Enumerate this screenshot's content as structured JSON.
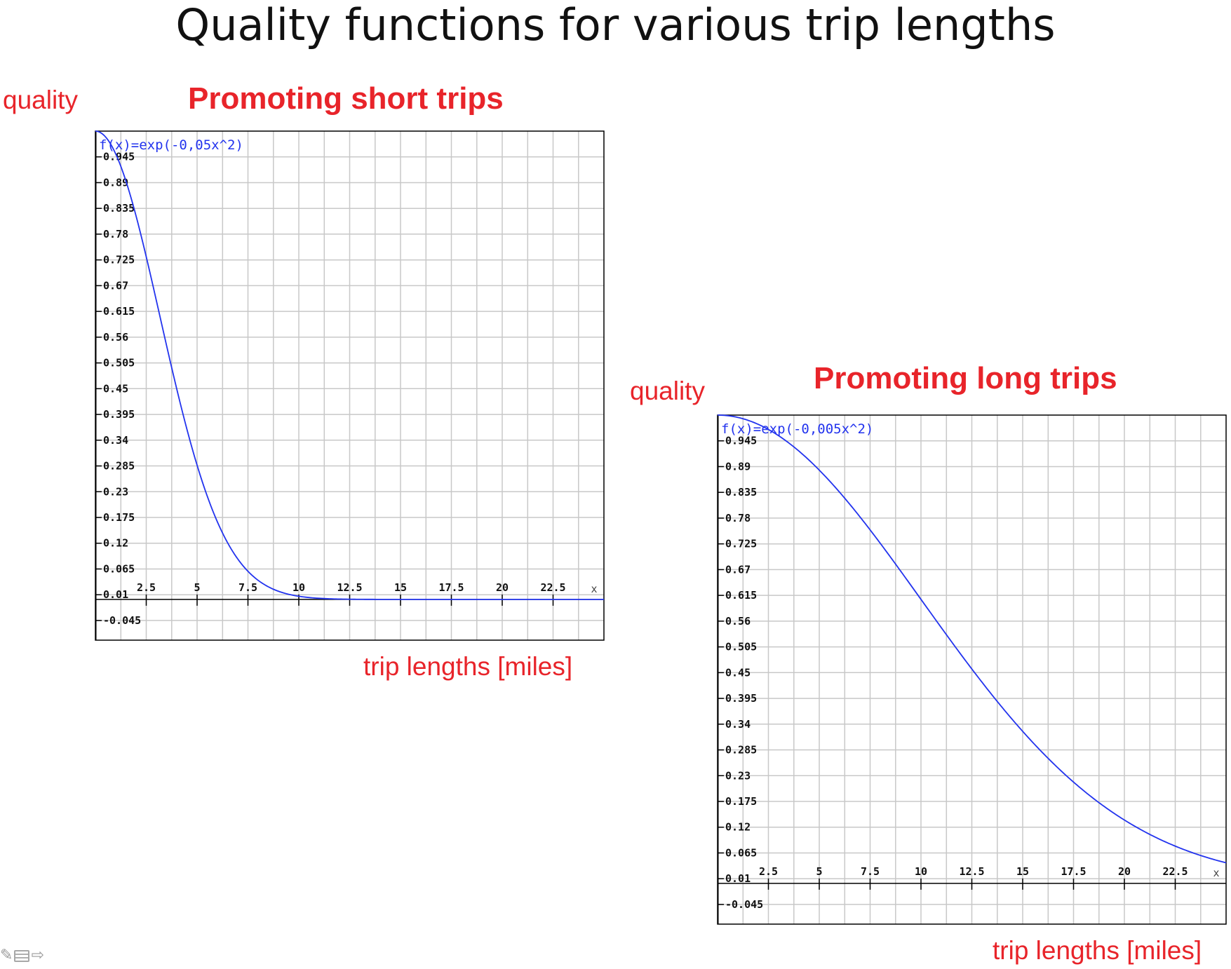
{
  "slide": {
    "title": "Quality functions for various trip lengths"
  },
  "toolbar": {
    "icons": [
      "pen-icon",
      "notes-icon",
      "next-arrow-icon"
    ]
  },
  "colors": {
    "curve": "#2233ee",
    "label": "#e8242a",
    "grid": "#c8c8c8",
    "axis": "#000000"
  },
  "chart_data": [
    {
      "type": "line",
      "title": "Promoting short trips",
      "ylabel": "quality",
      "xlabel": "trip lengths [miles]",
      "formula": "f(x)=exp(-0,05x^2)",
      "x_axis_letter": "x",
      "function": {
        "kind": "gaussian",
        "coefficient": 0.05
      },
      "xlim": [
        0,
        25
      ],
      "ylim": [
        -0.087,
        1.0
      ],
      "xticks": [
        2.5,
        5,
        7.5,
        10,
        12.5,
        15,
        17.5,
        20,
        22.5
      ],
      "xtick_labels": [
        "2.5",
        "5",
        "7.5",
        "10",
        "12.5",
        "15",
        "17.5",
        "20",
        "22.5"
      ],
      "yticks": [
        0.945,
        0.89,
        0.835,
        0.78,
        0.725,
        0.67,
        0.615,
        0.56,
        0.505,
        0.45,
        0.395,
        0.34,
        0.285,
        0.23,
        0.175,
        0.12,
        0.065,
        0.01,
        -0.045
      ],
      "ytick_labels": [
        "0.945",
        "0.89",
        "0.835",
        "0.78",
        "0.725",
        "0.67",
        "0.615",
        "0.56",
        "0.505",
        "0.45",
        "0.395",
        "0.34",
        "0.285",
        "0.23",
        "0.175",
        "0.12",
        "0.065",
        "0.01",
        "-0.045"
      ],
      "grid": true,
      "series": [
        {
          "x": [
            0,
            1,
            2,
            3,
            4,
            5,
            6,
            7,
            8,
            9,
            10,
            11,
            12,
            13,
            14,
            15,
            16,
            17,
            18,
            19,
            20,
            21,
            22,
            23,
            24,
            25
          ],
          "y": [
            1.0,
            0.951,
            0.819,
            0.638,
            0.449,
            0.287,
            0.165,
            0.086,
            0.041,
            0.017,
            0.007,
            0.002,
            0.001,
            0.0,
            0.0,
            0.0,
            0.0,
            0.0,
            0.0,
            0.0,
            0.0,
            0.0,
            0.0,
            0.0,
            0.0,
            0.0
          ]
        }
      ]
    },
    {
      "type": "line",
      "title": "Promoting long trips",
      "ylabel": "quality",
      "xlabel": "trip lengths [miles]",
      "formula": "f(x)=exp(-0,005x^2)",
      "x_axis_letter": "x",
      "function": {
        "kind": "gaussian",
        "coefficient": 0.005
      },
      "xlim": [
        0,
        25
      ],
      "ylim": [
        -0.087,
        1.0
      ],
      "xticks": [
        2.5,
        5,
        7.5,
        10,
        12.5,
        15,
        17.5,
        20,
        22.5
      ],
      "xtick_labels": [
        "2.5",
        "5",
        "7.5",
        "10",
        "12.5",
        "15",
        "17.5",
        "20",
        "22.5"
      ],
      "yticks": [
        0.945,
        0.89,
        0.835,
        0.78,
        0.725,
        0.67,
        0.615,
        0.56,
        0.505,
        0.45,
        0.395,
        0.34,
        0.285,
        0.23,
        0.175,
        0.12,
        0.065,
        0.01,
        -0.045
      ],
      "ytick_labels": [
        "0.945",
        "0.89",
        "0.835",
        "0.78",
        "0.725",
        "0.67",
        "0.615",
        "0.56",
        "0.505",
        "0.45",
        "0.395",
        "0.34",
        "0.285",
        "0.23",
        "0.175",
        "0.12",
        "0.065",
        "0.01",
        "-0.045"
      ],
      "grid": true,
      "series": [
        {
          "x": [
            0,
            1,
            2,
            3,
            4,
            5,
            6,
            7,
            8,
            9,
            10,
            11,
            12,
            13,
            14,
            15,
            16,
            17,
            18,
            19,
            20,
            21,
            22,
            23,
            24,
            25
          ],
          "y": [
            1.0,
            0.995,
            0.98,
            0.956,
            0.923,
            0.882,
            0.835,
            0.783,
            0.726,
            0.667,
            0.607,
            0.546,
            0.487,
            0.43,
            0.375,
            0.325,
            0.278,
            0.236,
            0.198,
            0.164,
            0.135,
            0.11,
            0.089,
            0.071,
            0.056,
            0.044
          ]
        }
      ]
    }
  ]
}
